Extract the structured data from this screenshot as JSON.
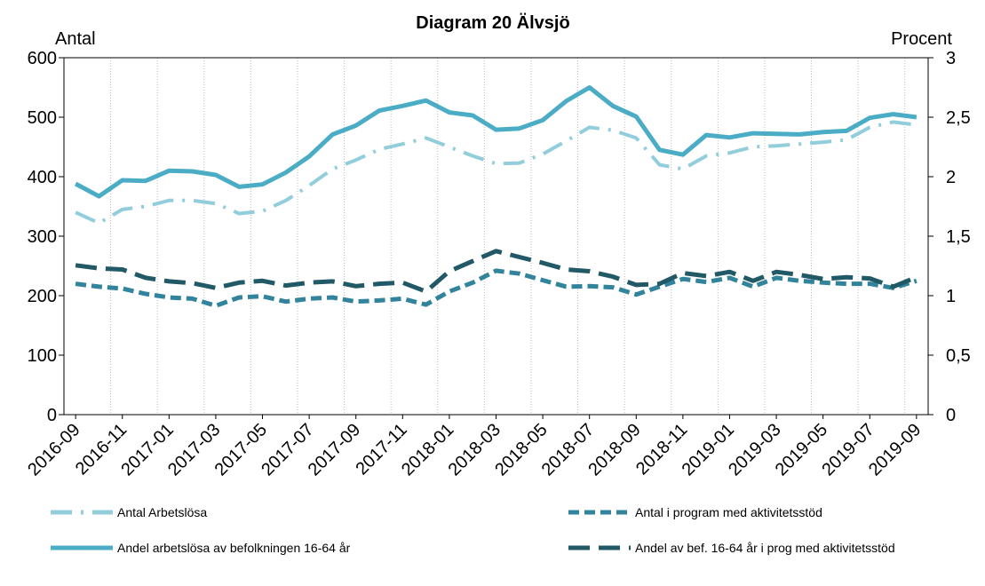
{
  "chart_data": {
    "type": "line",
    "title": "Diagram 20 Älvsjö",
    "ylabel": "Antal",
    "y2label": "Procent",
    "categories": [
      "2016-09",
      null,
      "2016-11",
      null,
      "2017-01",
      null,
      "2017-03",
      null,
      "2017-05",
      null,
      "2017-07",
      null,
      "2017-09",
      null,
      "2017-11",
      null,
      "2018-01",
      null,
      "2018-03",
      null,
      "2018-05",
      null,
      "2018-07",
      null,
      "2018-09",
      null,
      "2018-11",
      null,
      "2019-01",
      null,
      "2019-03",
      null,
      "2019-05",
      null,
      "2019-07",
      null,
      "2019-09"
    ],
    "ylim": [
      0,
      600
    ],
    "yticks": [
      0,
      100,
      200,
      300,
      400,
      500,
      600
    ],
    "y2lim": [
      0,
      3
    ],
    "y2ticks": [
      0,
      {
        "value": 0.5,
        "label": "0,5"
      },
      1,
      {
        "value": 1.5,
        "label": "1,5"
      },
      2,
      {
        "value": 2.5,
        "label": "2,5"
      },
      3
    ],
    "series": [
      {
        "name": "Antal Arbetslösa",
        "color": "#92cddc",
        "style": "dashdot",
        "values": [
          340,
          322,
          345,
          350,
          360,
          360,
          355,
          338,
          342,
          360,
          385,
          413,
          428,
          446,
          455,
          465,
          450,
          435,
          422,
          423,
          438,
          460,
          483,
          478,
          465,
          420,
          413,
          435,
          440,
          450,
          452,
          455,
          458,
          462,
          483,
          492,
          487
        ]
      },
      {
        "name": "Antal i program med aktivitetsstöd",
        "color": "#31849b",
        "style": "dashed",
        "values": [
          220,
          215,
          212,
          203,
          197,
          195,
          183,
          197,
          199,
          190,
          195,
          197,
          190,
          192,
          195,
          185,
          207,
          222,
          242,
          237,
          226,
          215,
          216,
          214,
          202,
          215,
          228,
          223,
          230,
          215,
          230,
          225,
          222,
          220,
          220,
          213,
          225
        ]
      },
      {
        "name": "Andel arbetslösa av befolkningen 16-64 år",
        "color": "#4bacc6",
        "style": "solid",
        "axis": "y2",
        "values": [
          1.94,
          1.835,
          1.97,
          1.965,
          2.05,
          2.045,
          2.015,
          1.915,
          1.935,
          2.035,
          2.17,
          2.355,
          2.43,
          2.555,
          2.595,
          2.64,
          2.54,
          2.515,
          2.395,
          2.405,
          2.475,
          2.635,
          2.75,
          2.595,
          2.505,
          2.225,
          2.185,
          2.35,
          2.33,
          2.365,
          2.36,
          2.355,
          2.375,
          2.385,
          2.495,
          2.525,
          2.5
        ]
      },
      {
        "name": "Andel av bef. 16-64 år i prog med aktivitetsstöd",
        "color": "#215967",
        "style": "longdash",
        "axis": "y2",
        "values": [
          1.255,
          1.23,
          1.22,
          1.15,
          1.12,
          1.105,
          1.065,
          1.11,
          1.125,
          1.085,
          1.11,
          1.12,
          1.08,
          1.1,
          1.11,
          1.035,
          1.205,
          1.29,
          1.375,
          1.325,
          1.275,
          1.22,
          1.205,
          1.16,
          1.09,
          1.1,
          1.19,
          1.165,
          1.2,
          1.125,
          1.2,
          1.175,
          1.14,
          1.155,
          1.145,
          1.075,
          1.155
        ]
      }
    ]
  }
}
